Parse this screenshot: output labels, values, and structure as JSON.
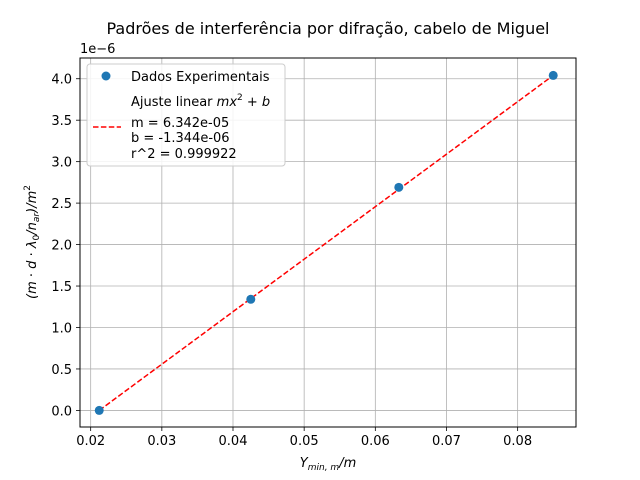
{
  "chart_data": {
    "type": "scatter",
    "title": "Padrões de interferência por difração, cabelo de Miguel",
    "xlabel": "Y_{min, m}/m",
    "ylabel": "(m·d·λ0/n_ar)/m^2",
    "y_offset_text": "1e−6",
    "xlim": [
      0.0185,
      0.0882
    ],
    "ylim": [
      -2e-07,
      4.25e-06
    ],
    "grid": true,
    "legend_position": "upper left",
    "x_ticks": [
      0.02,
      0.03,
      0.04,
      0.05,
      0.06,
      0.07,
      0.08
    ],
    "x_tick_labels": [
      "0.02",
      "0.03",
      "0.04",
      "0.05",
      "0.06",
      "0.07",
      "0.08"
    ],
    "y_ticks": [
      0.0,
      5e-07,
      1e-06,
      1.5e-06,
      2e-06,
      2.5e-06,
      3e-06,
      3.5e-06,
      4e-06
    ],
    "y_tick_labels": [
      "0.0",
      "0.5",
      "1.0",
      "1.5",
      "2.0",
      "2.5",
      "3.0",
      "3.5",
      "4.0"
    ],
    "series": [
      {
        "name": "Dados Experimentais",
        "kind": "scatter",
        "color": "#1f77b4",
        "x": [
          0.0212,
          0.0425,
          0.0633,
          0.085
        ],
        "y": [
          0.0,
          1.34e-06,
          2.69e-06,
          4.04e-06
        ]
      },
      {
        "name": "Ajuste linear mx^2 + b",
        "kind": "line",
        "style": "dashed",
        "color": "#ff0000",
        "x": [
          0.0212,
          0.085
        ],
        "y": [
          0.0,
          4.04e-06
        ]
      }
    ],
    "legend": {
      "scatter_label": "Dados Experimentais",
      "fit_title_prefix": "Ajuste linear ",
      "fit_lines": [
        "m = 6.342e-05",
        "b = -1.344e-06",
        "r^2 = 0.999922"
      ]
    }
  }
}
